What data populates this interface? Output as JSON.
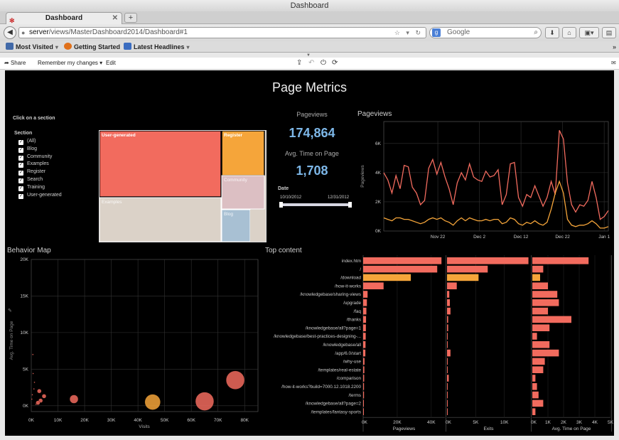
{
  "browser": {
    "window_title": "Dashboard",
    "tab_title": "Dashboard",
    "new_tab": "+",
    "url_host": "server",
    "url_path": "/views/MasterDashboard2014/Dashboard#1",
    "search_placeholder": "Google",
    "bookmarks": [
      {
        "label": "Most Visited",
        "icon": "bookmarks-icon",
        "color": "#4169a8"
      },
      {
        "label": "Getting Started",
        "icon": "firefox-icon",
        "color": "#e0701a"
      },
      {
        "label": "Latest Headlines",
        "icon": "rss-icon",
        "color": "#3a6cc0"
      }
    ]
  },
  "toolbar": {
    "share": "Share",
    "remember": "Remember my changes",
    "edit": "Edit"
  },
  "dashboard": {
    "title": "Page Metrics",
    "click_hint": "Click on a section",
    "filter_title": "Section",
    "filter_items": [
      "(All)",
      "Blog",
      "Community",
      "Examples",
      "Register",
      "Search",
      "Training",
      "User-generated"
    ],
    "pageviews_label": "Pageviews",
    "pageviews_value": "174,864",
    "avg_time_label": "Avg. Time on Page",
    "avg_time_value": "1,708",
    "date_label": "Date",
    "date_start": "10/10/2012",
    "date_end": "12/31/2012",
    "line_title": "Pageviews",
    "behavior_title": "Behavior Map",
    "top_title": "Top content"
  },
  "colors": {
    "red": "#f26b5e",
    "orange": "#f5a53a",
    "pink": "#dcbfc3",
    "blue": "#a8c0d3",
    "beige": "#dbd2c8"
  },
  "chart_data": [
    {
      "type": "treemap",
      "title": "Section",
      "items": [
        {
          "name": "User-generated",
          "color": "red"
        },
        {
          "name": "Register",
          "color": "orange"
        },
        {
          "name": "Community",
          "color": "pink"
        },
        {
          "name": "Examples",
          "color": "beige"
        },
        {
          "name": "Blog",
          "color": "blue"
        }
      ]
    },
    {
      "type": "line",
      "title": "Pageviews",
      "ylabel": "Pageviews",
      "ylim": [
        0,
        7500
      ],
      "y_ticks": [
        0,
        2000,
        4000,
        6000
      ],
      "y_tick_labels": [
        "0K",
        "2K",
        "4K",
        "6K"
      ],
      "x_ticks": [
        "Nov 22",
        "Dec 2",
        "Dec 12",
        "Dec 22",
        "Jan 1"
      ],
      "x_tick_positions": [
        13,
        23,
        33,
        43,
        53
      ],
      "x_range": [
        0,
        54
      ],
      "series": [
        {
          "name": "All",
          "color": "red",
          "values": [
            4000,
            3500,
            2600,
            3800,
            2900,
            4500,
            4400,
            3000,
            2600,
            1800,
            2100,
            4300,
            4900,
            3900,
            4700,
            3700,
            2900,
            1800,
            3300,
            4000,
            3500,
            4600,
            3700,
            3500,
            3400,
            4100,
            3700,
            3800,
            4200,
            1800,
            2500,
            4600,
            4700,
            2300,
            1700,
            2500,
            2300,
            3100,
            2400,
            1700,
            2300,
            3400,
            2500,
            6900,
            6300,
            3300,
            1800,
            1300,
            1800,
            1700,
            2100,
            3400,
            2300,
            800,
            1000,
            1400
          ]
        },
        {
          "name": "Register",
          "color": "orange",
          "values": [
            900,
            800,
            700,
            900,
            900,
            800,
            800,
            700,
            600,
            500,
            600,
            800,
            900,
            800,
            900,
            700,
            600,
            400,
            700,
            900,
            700,
            900,
            800,
            700,
            700,
            800,
            700,
            800,
            800,
            500,
            600,
            900,
            800,
            500,
            400,
            600,
            500,
            700,
            500,
            400,
            600,
            1500,
            2600,
            3400,
            2600,
            800,
            400,
            300,
            400,
            400,
            500,
            700,
            500,
            200,
            200,
            300
          ]
        }
      ]
    },
    {
      "type": "scatter",
      "title": "Behavior Map",
      "xlabel": "Visits",
      "ylabel": "Avg. Time on Page",
      "xlim": [
        0,
        85000
      ],
      "ylim": [
        -800,
        20000
      ],
      "x_ticks": [
        "0K",
        "10K",
        "20K",
        "30K",
        "40K",
        "50K",
        "60K",
        "70K",
        "80K"
      ],
      "y_ticks": [
        "0K",
        "5K",
        "10K",
        "15K",
        "20K"
      ],
      "points": [
        {
          "x": 76500,
          "y": 3500,
          "size": 4,
          "color": "red"
        },
        {
          "x": 65000,
          "y": 600,
          "size": 4,
          "color": "red"
        },
        {
          "x": 45500,
          "y": 500,
          "size": 3,
          "color": "orange"
        },
        {
          "x": 16000,
          "y": 900,
          "size": 2,
          "color": "red"
        },
        {
          "x": 3000,
          "y": 2000,
          "size": 1,
          "color": "red"
        },
        {
          "x": 4800,
          "y": 1300,
          "size": 1,
          "color": "red"
        },
        {
          "x": 3500,
          "y": 700,
          "size": 1,
          "color": "red"
        },
        {
          "x": 2500,
          "y": 400,
          "size": 1,
          "color": "red"
        },
        {
          "x": 1800,
          "y": 200,
          "size": 0,
          "color": "red"
        },
        {
          "x": 1000,
          "y": 2300,
          "size": 0,
          "color": "red"
        },
        {
          "x": 700,
          "y": 4400,
          "size": 0,
          "color": "red"
        },
        {
          "x": 600,
          "y": 7000,
          "size": 0,
          "color": "red"
        },
        {
          "x": 400,
          "y": 1500,
          "size": 0,
          "color": "red"
        },
        {
          "x": 200,
          "y": 900,
          "size": 0,
          "color": "red"
        },
        {
          "x": 1200,
          "y": 3200,
          "size": 0,
          "color": "red"
        }
      ]
    },
    {
      "type": "bar",
      "title": "Top content",
      "categories": [
        "index.htm",
        "/",
        "/download",
        "/how-it-works",
        "/knowledgebase/sharing-views",
        "/upgrade",
        "/faq",
        "/thanks",
        "/knowledgebase/all?page=1",
        "/knowledgebase/best-practices-designing-...",
        "/knowledgebase/all",
        "/app/6.0/start",
        "/why-use",
        "/templates/real-estate",
        "/comparison",
        "/how-it-works?build=7000.12.1018.2200",
        "/terms",
        "/knowledgebase/all?page=2",
        "/templates/fantasy-sports"
      ],
      "highlight": [
        2
      ],
      "series": [
        {
          "name": "Pageviews",
          "xlim": [
            0,
            48000
          ],
          "ticks": [
            "0K",
            "20K",
            "40K"
          ],
          "tick_values": [
            0,
            20000,
            40000
          ],
          "values": [
            46000,
            43500,
            28000,
            12000,
            2600,
            2200,
            1900,
            1700,
            1600,
            1500,
            1400,
            1300,
            800,
            700,
            600,
            500,
            500,
            400,
            300
          ]
        },
        {
          "name": "Exits",
          "xlim": [
            0,
            14500
          ],
          "ticks": [
            "0K",
            "5K",
            "10K"
          ],
          "tick_values": [
            0,
            5000,
            10000
          ],
          "values": [
            14200,
            7100,
            5500,
            1700,
            400,
            500,
            600,
            200,
            200,
            100,
            100,
            600,
            100,
            100,
            300,
            100,
            100,
            100,
            100
          ]
        },
        {
          "name": "Avg. Time on Page",
          "xlim": [
            0,
            5000
          ],
          "ticks": [
            "0K",
            "1K",
            "2K",
            "3K",
            "4K",
            "5K"
          ],
          "tick_values": [
            0,
            1000,
            2000,
            3000,
            4000,
            5000
          ],
          "values": [
            3600,
            700,
            500,
            1000,
            1600,
            1700,
            1000,
            2500,
            1100,
            300,
            1100,
            1700,
            800,
            700,
            200,
            300,
            400,
            700,
            200
          ]
        }
      ]
    }
  ]
}
